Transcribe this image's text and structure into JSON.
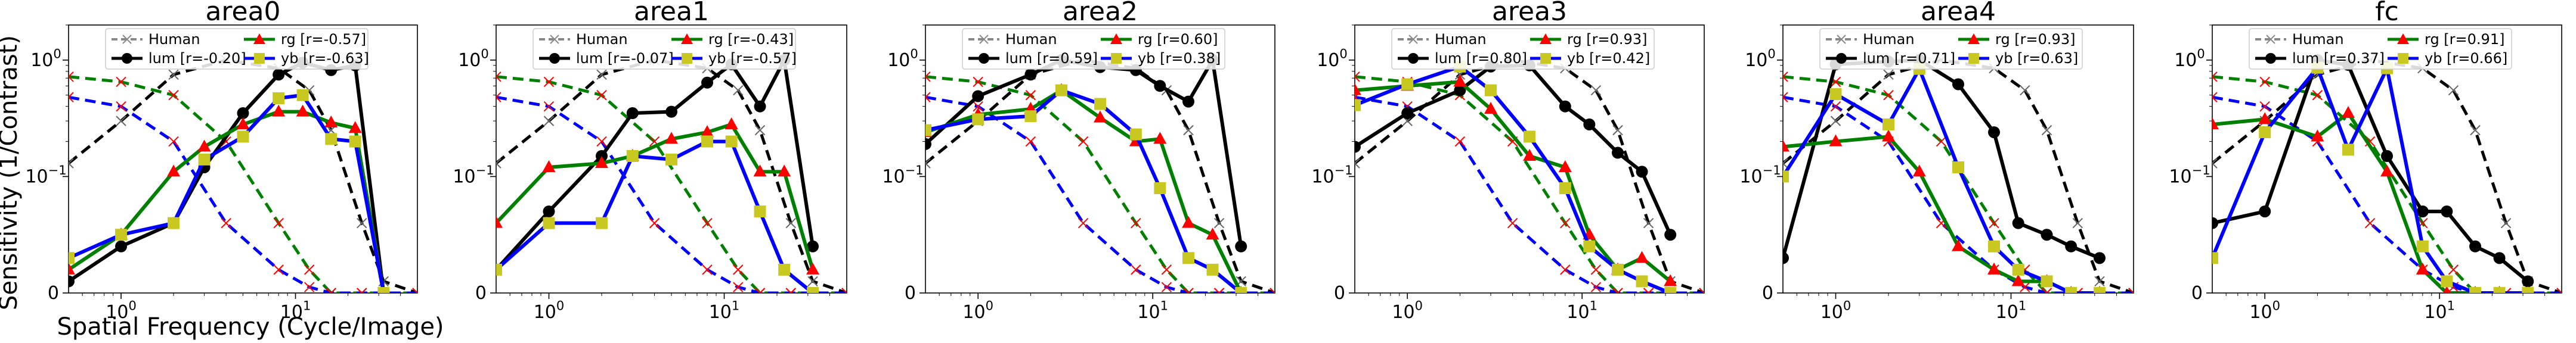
{
  "figure": {
    "ylabel": "Sensitivity (1/Contrast)",
    "xlabel": "Spatial Frequency (Cycle/Image)"
  },
  "colors": {
    "human": "#000000",
    "lum": "#000000",
    "rg": "#008000",
    "yb": "#0000ff",
    "rg_marker": "#ff0000",
    "yb_marker": "#c8c820",
    "human_marker": "#ff0000"
  },
  "chart_data": [
    {
      "type": "line",
      "title": "area0",
      "x_scale": "log",
      "y_scale": "symlog",
      "ylim": [
        0,
        2
      ],
      "xlim": [
        0.5,
        50
      ],
      "xticks": [
        "10^0",
        "10^1"
      ],
      "yticks": [
        "0",
        "10^-1",
        "10^0"
      ],
      "legend": {
        "placement": "top",
        "human": "Human",
        "lum": "lum [r=-0.20]",
        "rg": "rg    [r=-0.57]",
        "yb": "yb    [r=-0.63]"
      },
      "x": [
        0.5,
        1,
        2,
        4,
        8,
        12,
        16,
        24,
        32,
        50
      ],
      "human": [
        {
          "name": "lum",
          "values": [
            0.13,
            0.3,
            0.75,
            1.0,
            0.85,
            0.55,
            0.25,
            0.06,
            0.01,
            0.0
          ]
        },
        {
          "name": "rg",
          "values": [
            0.72,
            0.65,
            0.5,
            0.2,
            0.06,
            0.02,
            0.0,
            0.0,
            0.0,
            0.0
          ]
        },
        {
          "name": "yb",
          "values": [
            0.48,
            0.4,
            0.2,
            0.06,
            0.02,
            0.005,
            0.0,
            0.0,
            0.0,
            0.0
          ]
        }
      ],
      "x_model": [
        0.5,
        1,
        2,
        3,
        5,
        8,
        11,
        16,
        22,
        32
      ],
      "series": [
        {
          "name": "lum",
          "values": [
            0.01,
            0.04,
            0.06,
            0.12,
            0.35,
            0.75,
            0.95,
            0.82,
            0.9,
            0.0
          ]
        },
        {
          "name": "rg",
          "values": [
            0.02,
            0.05,
            0.11,
            0.18,
            0.28,
            0.36,
            0.36,
            0.29,
            0.26,
            0.0
          ]
        },
        {
          "name": "yb",
          "values": [
            0.03,
            0.05,
            0.06,
            0.14,
            0.22,
            0.47,
            0.5,
            0.21,
            0.2,
            0.0
          ]
        }
      ]
    },
    {
      "type": "line",
      "title": "area1",
      "x_scale": "log",
      "y_scale": "symlog",
      "ylim": [
        0,
        2
      ],
      "xlim": [
        0.5,
        50
      ],
      "xticks": [
        "10^0",
        "10^1"
      ],
      "yticks": [
        "0",
        "10^-1",
        "10^0"
      ],
      "legend": {
        "placement": "top",
        "human": "Human",
        "lum": "lum [r=-0.07]",
        "rg": "rg    [r=-0.43]",
        "yb": "yb    [r=-0.57]"
      },
      "x": [
        0.5,
        1,
        2,
        4,
        8,
        12,
        16,
        24,
        32,
        50
      ],
      "human": [
        {
          "name": "lum",
          "values": [
            0.13,
            0.3,
            0.75,
            1.0,
            0.85,
            0.55,
            0.25,
            0.06,
            0.01,
            0.0
          ]
        },
        {
          "name": "rg",
          "values": [
            0.72,
            0.65,
            0.5,
            0.2,
            0.06,
            0.02,
            0.0,
            0.0,
            0.0,
            0.0
          ]
        },
        {
          "name": "yb",
          "values": [
            0.48,
            0.4,
            0.2,
            0.06,
            0.02,
            0.005,
            0.0,
            0.0,
            0.0,
            0.0
          ]
        }
      ],
      "x_model": [
        0.5,
        1,
        2,
        3,
        5,
        8,
        11,
        16,
        22,
        32
      ],
      "series": [
        {
          "name": "lum",
          "values": [
            0.02,
            0.07,
            0.15,
            0.35,
            0.36,
            0.64,
            0.92,
            0.4,
            1.0,
            0.04
          ]
        },
        {
          "name": "rg",
          "values": [
            0.06,
            0.12,
            0.13,
            0.15,
            0.21,
            0.24,
            0.28,
            0.11,
            0.11,
            0.02
          ]
        },
        {
          "name": "yb",
          "values": [
            0.02,
            0.06,
            0.06,
            0.15,
            0.14,
            0.2,
            0.2,
            0.07,
            0.02,
            0.0
          ]
        }
      ]
    },
    {
      "type": "line",
      "title": "area2",
      "x_scale": "log",
      "y_scale": "symlog",
      "ylim": [
        0,
        2
      ],
      "xlim": [
        0.5,
        50
      ],
      "xticks": [
        "10^0",
        "10^1"
      ],
      "yticks": [
        "0",
        "10^-1",
        "10^0"
      ],
      "legend": {
        "placement": "top",
        "human": "Human",
        "lum": "lum [r=0.59]",
        "rg": "rg    [r=0.60]",
        "yb": "yb    [r=0.38]"
      },
      "x": [
        0.5,
        1,
        2,
        4,
        8,
        12,
        16,
        24,
        32,
        50
      ],
      "human": [
        {
          "name": "lum",
          "values": [
            0.13,
            0.3,
            0.75,
            1.0,
            0.85,
            0.55,
            0.25,
            0.06,
            0.01,
            0.0
          ]
        },
        {
          "name": "rg",
          "values": [
            0.72,
            0.65,
            0.5,
            0.2,
            0.06,
            0.02,
            0.0,
            0.0,
            0.0,
            0.0
          ]
        },
        {
          "name": "yb",
          "values": [
            0.48,
            0.4,
            0.2,
            0.06,
            0.02,
            0.005,
            0.0,
            0.0,
            0.0,
            0.0
          ]
        }
      ],
      "x_model": [
        0.5,
        1,
        2,
        3,
        5,
        8,
        11,
        16,
        22,
        32
      ],
      "series": [
        {
          "name": "lum",
          "values": [
            0.19,
            0.49,
            0.75,
            1.0,
            0.87,
            0.82,
            0.6,
            0.44,
            1.0,
            0.04
          ]
        },
        {
          "name": "rg",
          "values": [
            0.24,
            0.34,
            0.38,
            0.55,
            0.32,
            0.2,
            0.21,
            0.06,
            0.05,
            0.0
          ]
        },
        {
          "name": "yb",
          "values": [
            0.25,
            0.31,
            0.33,
            0.55,
            0.42,
            0.23,
            0.09,
            0.03,
            0.02,
            0.0
          ]
        }
      ]
    },
    {
      "type": "line",
      "title": "area3",
      "x_scale": "log",
      "y_scale": "symlog",
      "ylim": [
        0,
        2
      ],
      "xlim": [
        0.5,
        50
      ],
      "xticks": [
        "10^0",
        "10^1"
      ],
      "yticks": [
        "0",
        "10^-1",
        "10^0"
      ],
      "legend": {
        "placement": "top",
        "human": "Human",
        "lum": "lum [r=0.80]",
        "rg": "rg    [r=0.93]",
        "yb": "yb    [r=0.42]"
      },
      "x": [
        0.5,
        1,
        2,
        4,
        8,
        12,
        16,
        24,
        32,
        50
      ],
      "human": [
        {
          "name": "lum",
          "values": [
            0.13,
            0.3,
            0.75,
            1.0,
            0.85,
            0.55,
            0.25,
            0.06,
            0.01,
            0.0
          ]
        },
        {
          "name": "rg",
          "values": [
            0.72,
            0.65,
            0.5,
            0.2,
            0.06,
            0.02,
            0.0,
            0.0,
            0.0,
            0.0
          ]
        },
        {
          "name": "yb",
          "values": [
            0.48,
            0.4,
            0.2,
            0.06,
            0.02,
            0.005,
            0.0,
            0.0,
            0.0,
            0.0
          ]
        }
      ],
      "x_model": [
        0.5,
        1,
        2,
        3,
        5,
        8,
        11,
        16,
        22,
        32
      ],
      "series": [
        {
          "name": "lum",
          "values": [
            0.18,
            0.35,
            0.55,
            0.88,
            0.9,
            0.4,
            0.28,
            0.16,
            0.11,
            0.05
          ]
        },
        {
          "name": "rg",
          "values": [
            0.55,
            0.6,
            0.65,
            0.38,
            0.15,
            0.12,
            0.05,
            0.02,
            0.03,
            0.01
          ]
        },
        {
          "name": "yb",
          "values": [
            0.41,
            0.62,
            0.88,
            0.55,
            0.22,
            0.09,
            0.04,
            0.02,
            0.01,
            0.0
          ]
        }
      ]
    },
    {
      "type": "line",
      "title": "area4",
      "x_scale": "log",
      "y_scale": "symlog",
      "ylim": [
        0,
        2
      ],
      "xlim": [
        0.5,
        50
      ],
      "xticks": [
        "10^0",
        "10^1"
      ],
      "yticks": [
        "0",
        "10^-1",
        "10^0"
      ],
      "legend": {
        "placement": "top",
        "human": "Human",
        "lum": "lum [r=0.71]",
        "rg": "rg    [r=0.93]",
        "yb": "yb    [r=0.63]"
      },
      "x": [
        0.5,
        1,
        2,
        4,
        8,
        12,
        16,
        24,
        32,
        50
      ],
      "human": [
        {
          "name": "lum",
          "values": [
            0.13,
            0.3,
            0.75,
            1.0,
            0.85,
            0.55,
            0.25,
            0.06,
            0.01,
            0.0
          ]
        },
        {
          "name": "rg",
          "values": [
            0.72,
            0.65,
            0.5,
            0.2,
            0.06,
            0.02,
            0.0,
            0.0,
            0.0,
            0.0
          ]
        },
        {
          "name": "yb",
          "values": [
            0.48,
            0.4,
            0.2,
            0.06,
            0.02,
            0.005,
            0.0,
            0.0,
            0.0,
            0.0
          ]
        }
      ],
      "x_model": [
        0.5,
        1,
        2,
        3,
        5,
        8,
        11,
        16,
        22,
        32
      ],
      "series": [
        {
          "name": "lum",
          "values": [
            0.03,
            0.92,
            0.97,
            1.0,
            0.62,
            0.24,
            0.06,
            0.05,
            0.04,
            0.03
          ]
        },
        {
          "name": "rg",
          "values": [
            0.18,
            0.2,
            0.22,
            0.11,
            0.04,
            0.02,
            0.01,
            0.01,
            0.0,
            0.0
          ]
        },
        {
          "name": "yb",
          "values": [
            0.1,
            0.51,
            0.28,
            0.84,
            0.12,
            0.04,
            0.02,
            0.01,
            0.0,
            0.0
          ]
        }
      ]
    },
    {
      "type": "line",
      "title": "fc",
      "x_scale": "log",
      "y_scale": "symlog",
      "ylim": [
        0,
        2
      ],
      "xlim": [
        0.5,
        50
      ],
      "xticks": [
        "10^0",
        "10^1"
      ],
      "yticks": [
        "0",
        "10^-1",
        "10^0"
      ],
      "legend": {
        "placement": "top",
        "human": "Human",
        "lum": "lum [r=0.37]",
        "rg": "rg    [r=0.91]",
        "yb": "yb    [r=0.66]"
      },
      "x": [
        0.5,
        1,
        2,
        4,
        8,
        12,
        16,
        24,
        32,
        50
      ],
      "human": [
        {
          "name": "lum",
          "values": [
            0.13,
            0.3,
            0.75,
            1.0,
            0.85,
            0.55,
            0.25,
            0.06,
            0.01,
            0.0
          ]
        },
        {
          "name": "rg",
          "values": [
            0.72,
            0.65,
            0.5,
            0.2,
            0.06,
            0.02,
            0.0,
            0.0,
            0.0,
            0.0
          ]
        },
        {
          "name": "yb",
          "values": [
            0.48,
            0.4,
            0.2,
            0.06,
            0.02,
            0.005,
            0.0,
            0.0,
            0.0,
            0.0
          ]
        }
      ],
      "x_model": [
        0.5,
        1,
        2,
        3,
        5,
        8,
        11,
        16,
        22,
        32
      ],
      "series": [
        {
          "name": "lum",
          "values": [
            0.06,
            0.07,
            1.0,
            0.91,
            0.15,
            0.07,
            0.07,
            0.04,
            0.03,
            0.01
          ]
        },
        {
          "name": "rg",
          "values": [
            0.28,
            0.31,
            0.22,
            0.35,
            0.11,
            0.02,
            0.0,
            0.0,
            0.0,
            0.0
          ]
        },
        {
          "name": "yb",
          "values": [
            0.03,
            0.24,
            0.86,
            0.17,
            0.85,
            0.04,
            0.01,
            0.0,
            0.0,
            0.0
          ]
        }
      ]
    }
  ]
}
